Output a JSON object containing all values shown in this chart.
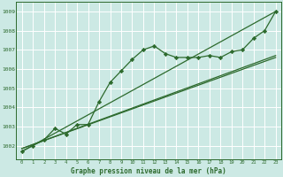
{
  "bg_color": "#cce9e4",
  "grid_color": "#b0d8d2",
  "line_color": "#2d6a2d",
  "title": "Graphe pression niveau de la mer (hPa)",
  "xlim": [
    -0.5,
    23.5
  ],
  "ylim": [
    1001.3,
    1009.5
  ],
  "yticks": [
    1002,
    1003,
    1004,
    1005,
    1006,
    1007,
    1008,
    1009
  ],
  "xticks": [
    0,
    1,
    2,
    3,
    4,
    5,
    6,
    7,
    8,
    9,
    10,
    11,
    12,
    13,
    14,
    15,
    16,
    17,
    18,
    19,
    20,
    21,
    22,
    23
  ],
  "series1_x": [
    0,
    1,
    2,
    3,
    4,
    5,
    6,
    7,
    8,
    9,
    10,
    11,
    12,
    13,
    14,
    15,
    16,
    17,
    18,
    19,
    20,
    21,
    22,
    23
  ],
  "series1_y": [
    1001.7,
    1002.0,
    1002.3,
    1002.9,
    1002.6,
    1003.1,
    1003.1,
    1004.3,
    1005.3,
    1005.9,
    1006.5,
    1007.0,
    1007.2,
    1006.8,
    1006.6,
    1006.6,
    1006.6,
    1006.7,
    1006.6,
    1006.9,
    1007.0,
    1007.6,
    1008.0,
    1009.0
  ],
  "ref_line1_x": [
    0,
    23
  ],
  "ref_line1_y": [
    1001.7,
    1009.0
  ],
  "ref_line2_x": [
    0,
    23
  ],
  "ref_line2_y": [
    1001.85,
    1006.6
  ],
  "ref_line3_x": [
    0,
    23
  ],
  "ref_line3_y": [
    1001.85,
    1006.7
  ]
}
